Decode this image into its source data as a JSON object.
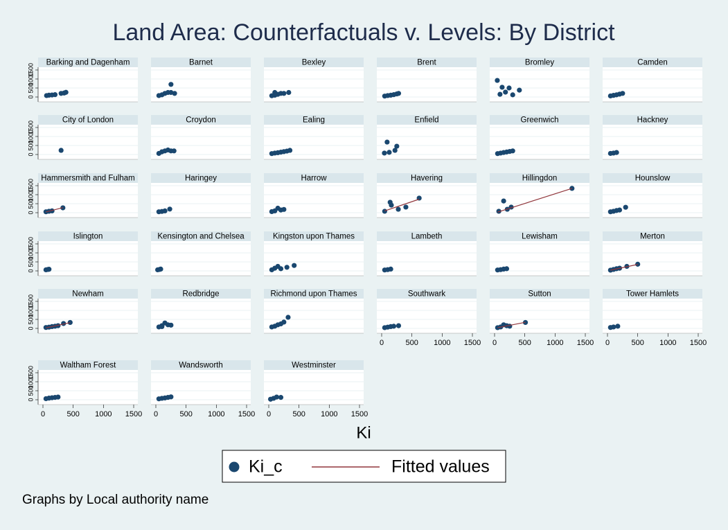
{
  "title": "Land Area: Counterfactuals v. Levels: By District",
  "x_label": "Ki",
  "note": "Graphs by Local authority name",
  "axes": {
    "xlim": [
      0,
      1500
    ],
    "ylim": [
      0,
      1500
    ],
    "xticks": [
      0,
      500,
      1000,
      1500
    ],
    "yticks": [
      0,
      500,
      1000,
      1500
    ],
    "grid": true
  },
  "chart_data": [
    {
      "type": "scatter",
      "title": "Barking and Dagenham",
      "series": [
        {
          "name": "Ki_c",
          "color": "#1a476f",
          "x": [
            60,
            100,
            150,
            200,
            300,
            350,
            380
          ],
          "values": [
            80,
            100,
            110,
            130,
            200,
            220,
            260
          ]
        }
      ]
    },
    {
      "type": "scatter",
      "title": "Barnet",
      "series": [
        {
          "name": "Ki_c",
          "color": "#1a476f",
          "x": [
            50,
            100,
            150,
            200,
            250,
            310,
            250
          ],
          "values": [
            80,
            120,
            200,
            250,
            250,
            200,
            700
          ]
        }
      ]
    },
    {
      "type": "scatter",
      "title": "Bexley",
      "series": [
        {
          "name": "Ki_c",
          "color": "#1a476f",
          "x": [
            50,
            100,
            150,
            200,
            250,
            330,
            100
          ],
          "values": [
            70,
            100,
            150,
            200,
            200,
            250,
            250
          ]
        }
      ]
    },
    {
      "type": "scatter",
      "title": "Brent",
      "series": [
        {
          "name": "Ki_c",
          "color": "#1a476f",
          "x": [
            50,
            100,
            150,
            200,
            250,
            280
          ],
          "values": [
            50,
            80,
            100,
            130,
            170,
            200
          ]
        }
      ]
    },
    {
      "type": "scatter",
      "title": "Bromley",
      "series": [
        {
          "name": "Ki_c",
          "color": "#1a476f",
          "x": [
            45,
            125,
            240,
            300,
            410,
            90,
            180
          ],
          "values": [
            920,
            540,
            500,
            120,
            380,
            150,
            270
          ]
        }
      ]
    },
    {
      "type": "scatter",
      "title": "Camden",
      "series": [
        {
          "name": "Ki_c",
          "color": "#1a476f",
          "x": [
            50,
            100,
            150,
            200,
            250
          ],
          "values": [
            60,
            90,
            120,
            160,
            200
          ]
        }
      ]
    },
    {
      "type": "scatter",
      "title": "City of London",
      "series": [
        {
          "name": "Ki_c",
          "color": "#1a476f",
          "x": [
            300
          ],
          "values": [
            230
          ]
        }
      ]
    },
    {
      "type": "scatter",
      "title": "Croydon",
      "series": [
        {
          "name": "Ki_c",
          "color": "#1a476f",
          "x": [
            50,
            100,
            150,
            200,
            250,
            300
          ],
          "values": [
            60,
            150,
            200,
            250,
            200,
            200
          ]
        }
      ]
    },
    {
      "type": "scatter",
      "title": "Ealing",
      "series": [
        {
          "name": "Ki_c",
          "color": "#1a476f",
          "x": [
            50,
            100,
            150,
            200,
            250,
            300,
            350
          ],
          "values": [
            50,
            80,
            100,
            130,
            160,
            190,
            230
          ]
        }
      ]
    },
    {
      "type": "scatter",
      "title": "Enfield",
      "series": [
        {
          "name": "Ki_c",
          "color": "#1a476f",
          "x": [
            90,
            250,
            220,
            45,
            125
          ],
          "values": [
            690,
            460,
            230,
            80,
            120
          ]
        }
      ]
    },
    {
      "type": "scatter",
      "title": "Greenwich",
      "series": [
        {
          "name": "Ki_c",
          "color": "#1a476f",
          "x": [
            50,
            100,
            150,
            200,
            250,
            300
          ],
          "values": [
            50,
            80,
            110,
            140,
            170,
            200
          ]
        }
      ]
    },
    {
      "type": "scatter",
      "title": "Hackney",
      "series": [
        {
          "name": "Ki_c",
          "color": "#1a476f",
          "x": [
            50,
            100,
            150
          ],
          "values": [
            60,
            80,
            110
          ]
        }
      ]
    },
    {
      "type": "scatter",
      "title": "Hammersmith and Fulham",
      "series": [
        {
          "name": "Ki_c",
          "color": "#1a476f",
          "x": [
            50,
            100,
            150,
            330
          ],
          "values": [
            50,
            80,
            100,
            270
          ]
        },
        {
          "name": "Fitted values",
          "color": "#90353b",
          "x": [
            50,
            330
          ],
          "values": [
            40,
            280
          ]
        }
      ]
    },
    {
      "type": "scatter",
      "title": "Haringey",
      "series": [
        {
          "name": "Ki_c",
          "color": "#1a476f",
          "x": [
            50,
            100,
            150,
            230
          ],
          "values": [
            50,
            70,
            100,
            200
          ]
        }
      ]
    },
    {
      "type": "scatter",
      "title": "Harrow",
      "series": [
        {
          "name": "Ki_c",
          "color": "#1a476f",
          "x": [
            50,
            100,
            150,
            200,
            250
          ],
          "values": [
            60,
            100,
            250,
            150,
            180
          ]
        }
      ]
    },
    {
      "type": "scatter",
      "title": "Havering",
      "series": [
        {
          "name": "Ki_c",
          "color": "#1a476f",
          "x": [
            140,
            160,
            400,
            620,
            50,
            275
          ],
          "values": [
            580,
            420,
            310,
            810,
            80,
            190
          ]
        },
        {
          "name": "Fitted values",
          "color": "#90353b",
          "x": [
            50,
            620
          ],
          "values": [
            100,
            750
          ]
        }
      ]
    },
    {
      "type": "scatter",
      "title": "Hillingdon",
      "series": [
        {
          "name": "Ki_c",
          "color": "#1a476f",
          "x": [
            150,
            275,
            1280,
            70,
            210
          ],
          "values": [
            650,
            310,
            1350,
            80,
            190
          ]
        },
        {
          "name": "Fitted values",
          "color": "#90353b",
          "x": [
            50,
            1280
          ],
          "values": [
            30,
            1350
          ]
        }
      ]
    },
    {
      "type": "scatter",
      "title": "Hounslow",
      "series": [
        {
          "name": "Ki_c",
          "color": "#1a476f",
          "x": [
            50,
            100,
            150,
            200,
            300
          ],
          "values": [
            50,
            80,
            120,
            150,
            300
          ]
        }
      ]
    },
    {
      "type": "scatter",
      "title": "Islington",
      "series": [
        {
          "name": "Ki_c",
          "color": "#1a476f",
          "x": [
            50,
            80,
            100
          ],
          "values": [
            60,
            80,
            90
          ]
        }
      ]
    },
    {
      "type": "scatter",
      "title": "Kensington and Chelsea",
      "series": [
        {
          "name": "Ki_c",
          "color": "#1a476f",
          "x": [
            30,
            60,
            80
          ],
          "values": [
            60,
            80,
            100
          ]
        }
      ]
    },
    {
      "type": "scatter",
      "title": "Kingston upon Thames",
      "series": [
        {
          "name": "Ki_c",
          "color": "#1a476f",
          "x": [
            50,
            100,
            150,
            200,
            300,
            420
          ],
          "values": [
            60,
            150,
            250,
            120,
            200,
            300
          ]
        }
      ]
    },
    {
      "type": "scatter",
      "title": "Lambeth",
      "series": [
        {
          "name": "Ki_c",
          "color": "#1a476f",
          "x": [
            50,
            100,
            150
          ],
          "values": [
            50,
            70,
            100
          ]
        }
      ]
    },
    {
      "type": "scatter",
      "title": "Lewisham",
      "series": [
        {
          "name": "Ki_c",
          "color": "#1a476f",
          "x": [
            50,
            100,
            150,
            200
          ],
          "values": [
            50,
            70,
            100,
            120
          ]
        }
      ]
    },
    {
      "type": "scatter",
      "title": "Merton",
      "series": [
        {
          "name": "Ki_c",
          "color": "#1a476f",
          "x": [
            50,
            100,
            150,
            200,
            320,
            500
          ],
          "values": [
            40,
            80,
            120,
            150,
            250,
            370
          ]
        },
        {
          "name": "Fitted values",
          "color": "#90353b",
          "x": [
            50,
            500
          ],
          "values": [
            40,
            360
          ]
        }
      ]
    },
    {
      "type": "scatter",
      "title": "Newham",
      "series": [
        {
          "name": "Ki_c",
          "color": "#1a476f",
          "x": [
            50,
            100,
            150,
            200,
            250,
            340,
            450
          ],
          "values": [
            50,
            70,
            100,
            120,
            150,
            270,
            330
          ]
        },
        {
          "name": "Fitted values",
          "color": "#90353b",
          "x": [
            50,
            450
          ],
          "values": [
            30,
            320
          ]
        }
      ]
    },
    {
      "type": "scatter",
      "title": "Redbridge",
      "series": [
        {
          "name": "Ki_c",
          "color": "#1a476f",
          "x": [
            50,
            100,
            150,
            200,
            250,
            100
          ],
          "values": [
            80,
            150,
            300,
            200,
            180,
            100
          ]
        }
      ]
    },
    {
      "type": "scatter",
      "title": "Richmond upon Thames",
      "series": [
        {
          "name": "Ki_c",
          "color": "#1a476f",
          "x": [
            50,
            100,
            150,
            200,
            250,
            320
          ],
          "values": [
            80,
            120,
            200,
            250,
            350,
            615
          ]
        }
      ]
    },
    {
      "type": "scatter",
      "title": "Southwark",
      "series": [
        {
          "name": "Ki_c",
          "color": "#1a476f",
          "x": [
            50,
            100,
            150,
            200,
            280
          ],
          "values": [
            40,
            70,
            100,
            120,
            150
          ]
        }
      ]
    },
    {
      "type": "scatter",
      "title": "Sutton",
      "series": [
        {
          "name": "Ki_c",
          "color": "#1a476f",
          "x": [
            50,
            100,
            150,
            200,
            250,
            510
          ],
          "values": [
            40,
            80,
            200,
            150,
            120,
            330
          ]
        },
        {
          "name": "Fitted values",
          "color": "#90353b",
          "x": [
            50,
            510
          ],
          "values": [
            40,
            340
          ]
        }
      ]
    },
    {
      "type": "scatter",
      "title": "Tower Hamlets",
      "series": [
        {
          "name": "Ki_c",
          "color": "#1a476f",
          "x": [
            50,
            100,
            170
          ],
          "values": [
            50,
            80,
            120
          ]
        }
      ]
    },
    {
      "type": "scatter",
      "title": "Waltham Forest",
      "series": [
        {
          "name": "Ki_c",
          "color": "#1a476f",
          "x": [
            50,
            100,
            150,
            200,
            250
          ],
          "values": [
            60,
            90,
            110,
            130,
            150
          ]
        }
      ]
    },
    {
      "type": "scatter",
      "title": "Wandsworth",
      "series": [
        {
          "name": "Ki_c",
          "color": "#1a476f",
          "x": [
            50,
            100,
            150,
            200,
            250
          ],
          "values": [
            50,
            80,
            100,
            130,
            160
          ]
        }
      ]
    },
    {
      "type": "scatter",
      "title": "Westminster",
      "series": [
        {
          "name": "Ki_c",
          "color": "#1a476f",
          "x": [
            30,
            80,
            130,
            200
          ],
          "values": [
            30,
            80,
            150,
            130
          ]
        }
      ]
    }
  ]
}
